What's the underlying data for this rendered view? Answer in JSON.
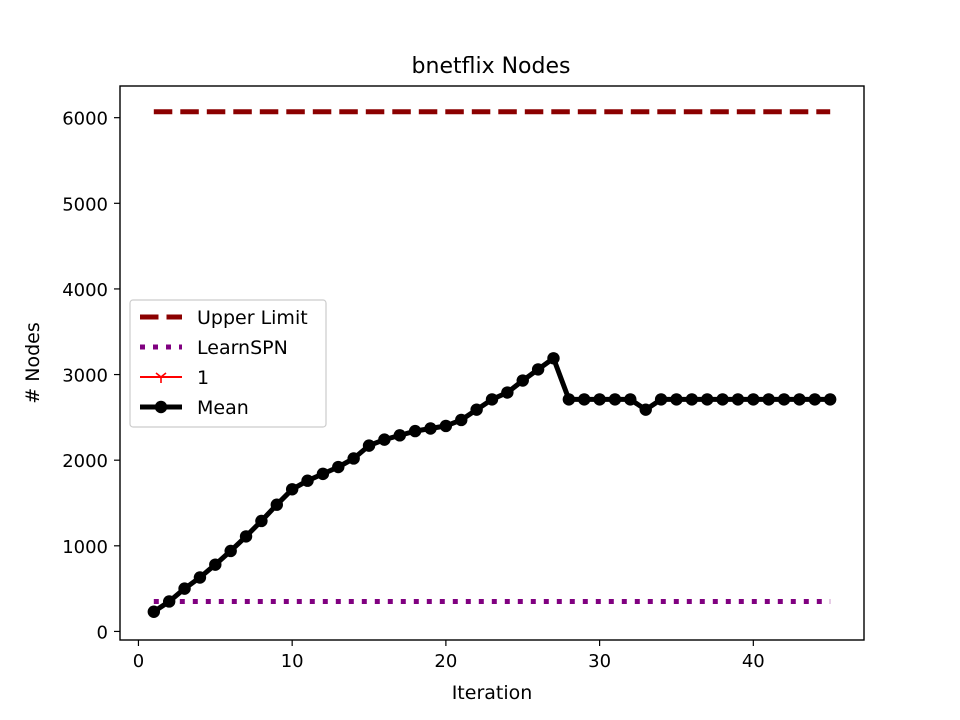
{
  "chart_data": {
    "type": "line",
    "title": "bnetflix Nodes",
    "xlabel": "Iteration",
    "ylabel": "# Nodes",
    "xlim": [
      -1.2,
      47.2
    ],
    "ylim": [
      -100,
      6370
    ],
    "xticks": [
      0,
      10,
      20,
      30,
      40
    ],
    "yticks": [
      0,
      1000,
      2000,
      3000,
      4000,
      5000,
      6000
    ],
    "legend_position": "center-left",
    "grid": false,
    "series": [
      {
        "name": "Upper Limit",
        "color": "#8b0000",
        "style": "dashed",
        "x": [
          1,
          45
        ],
        "y": [
          6070,
          6070
        ]
      },
      {
        "name": "LearnSPN",
        "color": "#800080",
        "style": "dotted",
        "x": [
          1,
          45
        ],
        "y": [
          350,
          350
        ]
      },
      {
        "name": "1",
        "color": "#ff0000",
        "style": "solid-tri-marker",
        "x": [],
        "y": []
      },
      {
        "name": "Mean",
        "color": "#000000",
        "style": "solid-circle-marker",
        "x": [
          1,
          2,
          3,
          4,
          5,
          6,
          7,
          8,
          9,
          10,
          11,
          12,
          13,
          14,
          15,
          16,
          17,
          18,
          19,
          20,
          21,
          22,
          23,
          24,
          25,
          26,
          27,
          28,
          29,
          30,
          31,
          32,
          33,
          34,
          35,
          36,
          37,
          38,
          39,
          40,
          41,
          42,
          43,
          44,
          45
        ],
        "y": [
          230,
          350,
          500,
          630,
          780,
          940,
          1110,
          1290,
          1480,
          1660,
          1760,
          1840,
          1920,
          2020,
          2170,
          2240,
          2290,
          2340,
          2370,
          2400,
          2470,
          2590,
          2710,
          2790,
          2930,
          3060,
          3190,
          2710,
          2710,
          2710,
          2710,
          2710,
          2590,
          2710,
          2710,
          2710,
          2710,
          2710,
          2710,
          2710,
          2710,
          2710,
          2710,
          2710,
          2710
        ]
      }
    ]
  }
}
